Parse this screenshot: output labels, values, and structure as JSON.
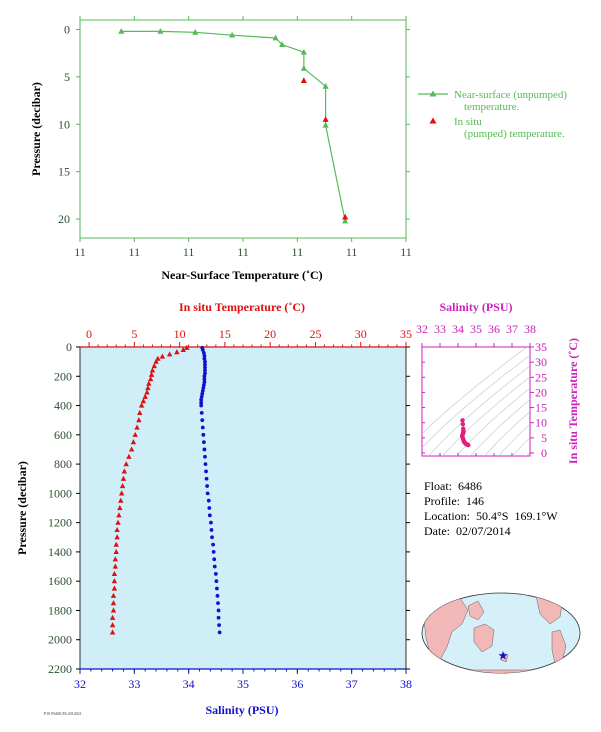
{
  "colors": {
    "near_surface": "#55bb55",
    "in_situ_temp": "#dd1111",
    "salinity": "#1111cc",
    "inset": "#cc22bb",
    "axis_text": "#2f4f2f",
    "plot_bg": "#cfeef8",
    "land": "#f2b8b8",
    "ocean": "#d6f0fa"
  },
  "float_info": {
    "float": "Float:  6486",
    "profile": "Profile:  146",
    "location": "Location:  50.4°S  169.1°W",
    "date": "Date:  02/07/2014"
  },
  "footer_note": "P10 F6486 F6 2014021",
  "map": {
    "marker_icon": "star-icon",
    "float_location": "50.4°S 169.1°W"
  },
  "chart_data": [
    {
      "type": "line",
      "id": "near_surface",
      "xlabel": "Near-Surface Temperature (˚C)",
      "ylabel": "Pressure (decibar)",
      "x_tick_labels": [
        "11",
        "11",
        "11",
        "11",
        "11",
        "11",
        "11"
      ],
      "y_ticks": [
        0,
        5,
        10,
        15,
        20
      ],
      "xlim": [
        10.925,
        11.075
      ],
      "ylim": [
        22,
        -1
      ],
      "legend_position": "right",
      "series": [
        {
          "name": "Near-surface (unpumped) temperature.",
          "style": "line-triangle",
          "points": [
            [
              10.944,
              0.2
            ],
            [
              10.962,
              0.2
            ],
            [
              10.978,
              0.3
            ],
            [
              10.995,
              0.6
            ],
            [
              11.015,
              0.9
            ],
            [
              11.018,
              1.6
            ],
            [
              11.028,
              2.4
            ],
            [
              11.028,
              4.1
            ],
            [
              11.038,
              6.0
            ],
            [
              11.038,
              10.1
            ],
            [
              11.047,
              20.2
            ]
          ]
        },
        {
          "name": "In situ (pumped) temperature.",
          "style": "triangle",
          "points": [
            [
              11.028,
              5.4
            ],
            [
              11.038,
              9.5
            ],
            [
              11.047,
              19.8
            ]
          ]
        }
      ]
    },
    {
      "type": "scatter",
      "id": "profile",
      "ylabel": "Pressure (decibar)",
      "ylim": [
        2200,
        0
      ],
      "y_ticks": [
        0,
        200,
        400,
        600,
        800,
        1000,
        1200,
        1400,
        1600,
        1800,
        2000,
        2200
      ],
      "top_axis": {
        "label": "In situ Temperature (˚C)",
        "range": [
          -1,
          35
        ],
        "ticks": [
          0,
          5,
          10,
          15,
          20,
          25,
          30,
          35
        ]
      },
      "bottom_axis": {
        "label": "Salinity (PSU)",
        "range": [
          32,
          38
        ],
        "ticks": [
          32,
          33,
          34,
          35,
          36,
          37,
          38
        ]
      },
      "series": [
        {
          "name": "In situ Temperature",
          "axis": "top",
          "marker": "triangle",
          "points": [
            [
              10.8,
              5
            ],
            [
              10.4,
              20
            ],
            [
              9.7,
              35
            ],
            [
              8.9,
              50
            ],
            [
              8.1,
              65
            ],
            [
              7.6,
              80
            ],
            [
              7.4,
              100
            ],
            [
              7.2,
              130
            ],
            [
              7.0,
              160
            ],
            [
              6.9,
              190
            ],
            [
              6.8,
              220
            ],
            [
              6.6,
              250
            ],
            [
              6.5,
              280
            ],
            [
              6.4,
              310
            ],
            [
              6.2,
              340
            ],
            [
              6.0,
              370
            ],
            [
              5.8,
              400
            ],
            [
              5.6,
              450
            ],
            [
              5.5,
              500
            ],
            [
              5.3,
              550
            ],
            [
              5.1,
              600
            ],
            [
              4.9,
              650
            ],
            [
              4.7,
              700
            ],
            [
              4.4,
              750
            ],
            [
              4.1,
              800
            ],
            [
              3.9,
              850
            ],
            [
              3.8,
              900
            ],
            [
              3.7,
              950
            ],
            [
              3.6,
              1000
            ],
            [
              3.5,
              1050
            ],
            [
              3.4,
              1100
            ],
            [
              3.3,
              1150
            ],
            [
              3.2,
              1200
            ],
            [
              3.1,
              1250
            ],
            [
              3.1,
              1300
            ],
            [
              3.0,
              1350
            ],
            [
              3.0,
              1400
            ],
            [
              2.9,
              1450
            ],
            [
              2.9,
              1500
            ],
            [
              2.8,
              1550
            ],
            [
              2.8,
              1600
            ],
            [
              2.8,
              1650
            ],
            [
              2.7,
              1700
            ],
            [
              2.7,
              1750
            ],
            [
              2.7,
              1800
            ],
            [
              2.6,
              1850
            ],
            [
              2.6,
              1900
            ],
            [
              2.6,
              1950
            ]
          ]
        },
        {
          "name": "Salinity",
          "axis": "bottom",
          "marker": "dot",
          "points": [
            [
              34.25,
              5
            ],
            [
              34.26,
              20
            ],
            [
              34.28,
              40
            ],
            [
              34.29,
              60
            ],
            [
              34.29,
              80
            ],
            [
              34.3,
              100
            ],
            [
              34.3,
              120
            ],
            [
              34.3,
              140
            ],
            [
              34.3,
              160
            ],
            [
              34.3,
              180
            ],
            [
              34.29,
              200
            ],
            [
              34.29,
              220
            ],
            [
              34.29,
              240
            ],
            [
              34.28,
              260
            ],
            [
              34.27,
              280
            ],
            [
              34.26,
              300
            ],
            [
              34.25,
              320
            ],
            [
              34.24,
              340
            ],
            [
              34.23,
              360
            ],
            [
              34.23,
              380
            ],
            [
              34.23,
              400
            ],
            [
              34.24,
              450
            ],
            [
              34.25,
              500
            ],
            [
              34.26,
              550
            ],
            [
              34.27,
              600
            ],
            [
              34.28,
              650
            ],
            [
              34.29,
              700
            ],
            [
              34.3,
              750
            ],
            [
              34.31,
              800
            ],
            [
              34.32,
              850
            ],
            [
              34.33,
              900
            ],
            [
              34.34,
              950
            ],
            [
              34.35,
              1000
            ],
            [
              34.37,
              1050
            ],
            [
              34.38,
              1100
            ],
            [
              34.39,
              1150
            ],
            [
              34.41,
              1200
            ],
            [
              34.42,
              1250
            ],
            [
              34.43,
              1300
            ],
            [
              34.45,
              1350
            ],
            [
              34.46,
              1400
            ],
            [
              34.47,
              1450
            ],
            [
              34.48,
              1500
            ],
            [
              34.5,
              1550
            ],
            [
              34.51,
              1600
            ],
            [
              34.52,
              1650
            ],
            [
              34.53,
              1700
            ],
            [
              34.54,
              1750
            ],
            [
              34.55,
              1800
            ],
            [
              34.55,
              1850
            ],
            [
              34.56,
              1900
            ],
            [
              34.57,
              1950
            ]
          ]
        }
      ]
    },
    {
      "type": "scatter",
      "id": "ts_inset",
      "xlabel": "Salinity (PSU)",
      "ylabel": "In situ Temperature (˚C)",
      "xlim": [
        32,
        38
      ],
      "ylim": [
        -1,
        35
      ],
      "x_ticks": [
        32,
        33,
        34,
        35,
        36,
        37,
        38
      ],
      "y_ticks": [
        0,
        5,
        10,
        15,
        20,
        25,
        30,
        35
      ],
      "series": [
        {
          "name": "T-S",
          "points": [
            [
              34.25,
              10.8
            ],
            [
              34.27,
              9.5
            ],
            [
              34.29,
              8.0
            ],
            [
              34.3,
              7.4
            ],
            [
              34.3,
              7.0
            ],
            [
              34.29,
              6.6
            ],
            [
              34.27,
              6.3
            ],
            [
              34.24,
              5.9
            ],
            [
              34.23,
              5.6
            ],
            [
              34.25,
              5.3
            ],
            [
              34.27,
              4.9
            ],
            [
              34.29,
              4.5
            ],
            [
              34.31,
              4.1
            ],
            [
              34.33,
              3.8
            ],
            [
              34.35,
              3.6
            ],
            [
              34.38,
              3.4
            ],
            [
              34.41,
              3.2
            ],
            [
              34.44,
              3.0
            ],
            [
              34.47,
              2.9
            ],
            [
              34.5,
              2.8
            ],
            [
              34.53,
              2.7
            ],
            [
              34.57,
              2.6
            ]
          ]
        }
      ]
    }
  ]
}
